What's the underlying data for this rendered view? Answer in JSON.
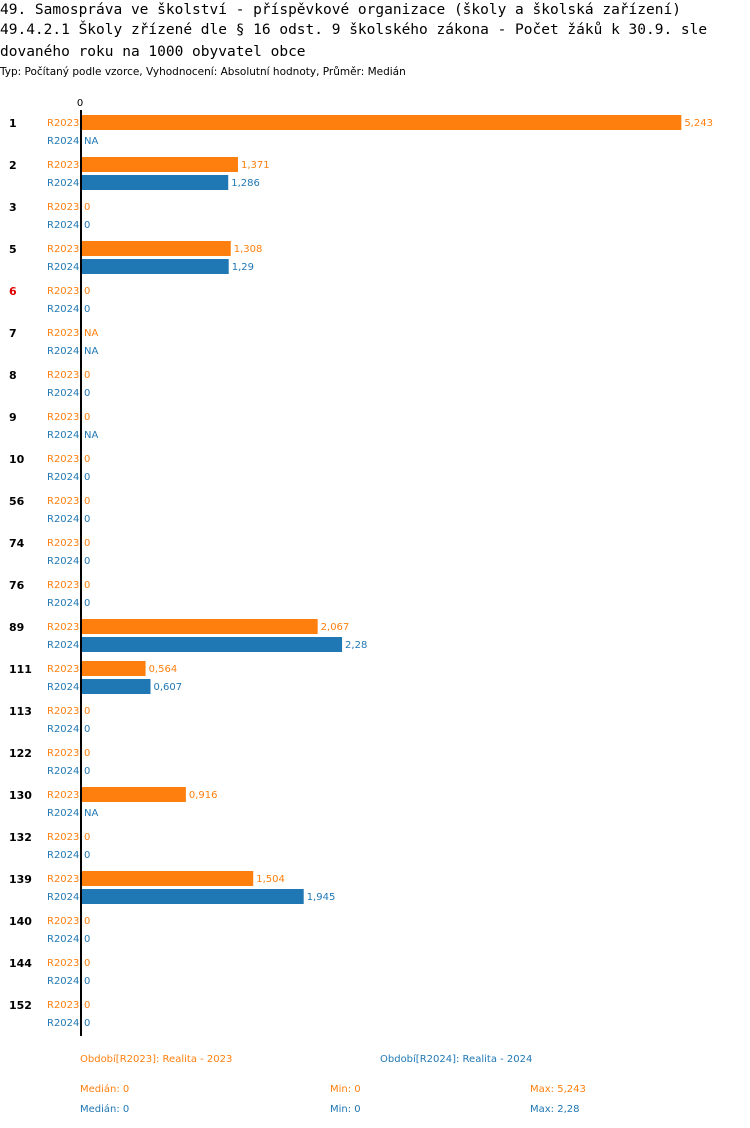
{
  "header": {
    "title_line1": "49. Samospráva ve školství - příspěvkové organizace (školy a školská zařízení)",
    "title_line2": "49.4.2.1 Školy zřízené dle § 16 odst. 9 školského zákona - Počet žáků k 30.9. sle",
    "title_line3": "dovaného roku na 1000 obyvatel obce",
    "subtitle": "Typ: Počítaný podle vzorce, Vyhodnocení: Absolutní hodnoty, Průměr: Medián"
  },
  "colors": {
    "r2023": "#ff7f0e",
    "r2024": "#1f77b4",
    "highlight_label": "#e00000"
  },
  "chart_data": {
    "type": "bar",
    "orientation": "horizontal",
    "axis_zero_label": "0",
    "xlim": [
      0,
      5.243
    ],
    "highlight_category": "6",
    "categories": [
      "1",
      "2",
      "3",
      "5",
      "6",
      "7",
      "8",
      "9",
      "10",
      "56",
      "74",
      "76",
      "89",
      "111",
      "113",
      "122",
      "130",
      "132",
      "139",
      "140",
      "144",
      "152"
    ],
    "series": [
      {
        "name": "R2023",
        "values": [
          5.243,
          1.371,
          0,
          1.308,
          0,
          null,
          0,
          0,
          0,
          0,
          0,
          0,
          2.067,
          0.564,
          0,
          0,
          0.916,
          0,
          1.504,
          0,
          0,
          0
        ],
        "labels": [
          "5,243",
          "1,371",
          "0",
          "1,308",
          "0",
          "NA",
          "0",
          "0",
          "0",
          "0",
          "0",
          "0",
          "2,067",
          "0,564",
          "0",
          "0",
          "0,916",
          "0",
          "1,504",
          "0",
          "0",
          "0"
        ]
      },
      {
        "name": "R2024",
        "values": [
          null,
          1.286,
          0,
          1.29,
          0,
          null,
          0,
          null,
          0,
          0,
          0,
          0,
          2.28,
          0.607,
          0,
          0,
          null,
          0,
          1.945,
          0,
          0,
          0
        ],
        "labels": [
          "NA",
          "1,286",
          "0",
          "1,29",
          "0",
          "NA",
          "0",
          "NA",
          "0",
          "0",
          "0",
          "0",
          "2,28",
          "0,607",
          "0",
          "0",
          "NA",
          "0",
          "1,945",
          "0",
          "0",
          "0"
        ]
      }
    ]
  },
  "legend": {
    "r2023": "Období[R2023]: Realita - 2023",
    "r2024": "Období[R2024]: Realita - 2024"
  },
  "stats": {
    "r2023": {
      "median": "Medián: 0",
      "min": "Min: 0",
      "max": "Max: 5,243"
    },
    "r2024": {
      "median": "Medián: 0",
      "min": "Min: 0",
      "max": "Max: 2,28"
    }
  }
}
